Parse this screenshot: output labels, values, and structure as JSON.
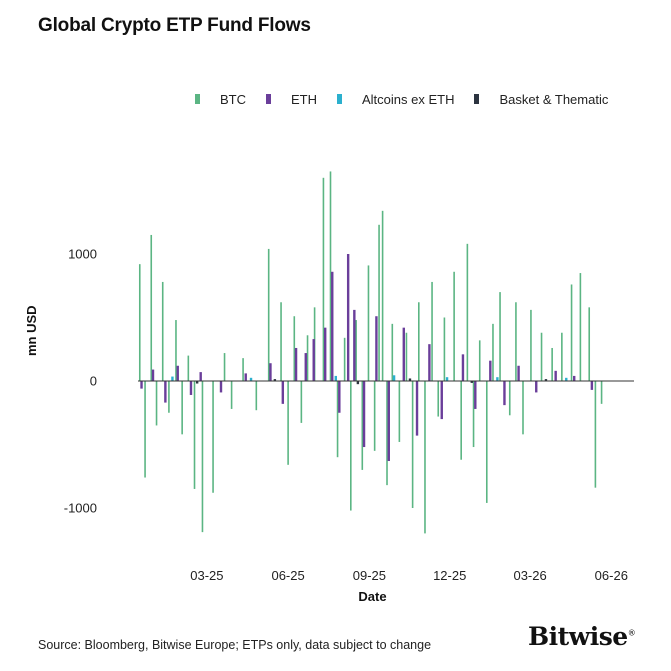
{
  "title": "Global Crypto ETP Fund Flows",
  "source": "Source: Bloomberg, Bitwise Europe; ETPs only, data subject to change",
  "brand": "Bitwise",
  "brand_mark": "®",
  "chart_data": {
    "type": "bar",
    "title": "Global Crypto ETP Fund Flows",
    "xlabel": "Date",
    "ylabel": "mn USD",
    "ylim": [
      -1250,
      1650
    ],
    "yticks": [
      1000,
      0,
      -1000
    ],
    "ytick_labels": [
      "1000",
      "0",
      "-1000"
    ],
    "x_range": [
      "2025-01-06",
      "2026-06-20"
    ],
    "xticks": [
      "2025-03-25",
      "2025-06-25",
      "2025-09-25",
      "2025-12-25",
      "2026-03-26",
      "2026-06-26"
    ],
    "xtick_labels": [
      "03-25",
      "06-25",
      "09-25",
      "12-25",
      "03-26",
      "06-26"
    ],
    "grid": false,
    "legend": "top",
    "series": [
      {
        "name": "BTC",
        "color": "#5BB583",
        "x": [
          "2025-01-08",
          "2025-01-14",
          "2025-01-21",
          "2025-01-27",
          "2025-02-03",
          "2025-02-10",
          "2025-02-18",
          "2025-02-25",
          "2025-03-04",
          "2025-03-11",
          "2025-03-20",
          "2025-04-01",
          "2025-04-14",
          "2025-04-22",
          "2025-05-05",
          "2025-05-20",
          "2025-06-03",
          "2025-06-17",
          "2025-06-25",
          "2025-07-02",
          "2025-07-10",
          "2025-07-17",
          "2025-07-25",
          "2025-08-04",
          "2025-08-12",
          "2025-08-20",
          "2025-08-28",
          "2025-09-04",
          "2025-09-10",
          "2025-09-17",
          "2025-09-24",
          "2025-10-01",
          "2025-10-06",
          "2025-10-10",
          "2025-10-15",
          "2025-10-21",
          "2025-10-29",
          "2025-11-06",
          "2025-11-13",
          "2025-11-20",
          "2025-11-27",
          "2025-12-05",
          "2025-12-12",
          "2025-12-19",
          "2025-12-30",
          "2026-01-07",
          "2026-01-14",
          "2026-01-21",
          "2026-01-28",
          "2026-02-05",
          "2026-02-12",
          "2026-02-20",
          "2026-03-03",
          "2026-03-10",
          "2026-03-18",
          "2026-03-27",
          "2026-04-08",
          "2026-04-20",
          "2026-05-01",
          "2026-05-12",
          "2026-05-22",
          "2026-06-01",
          "2026-06-08",
          "2026-06-15"
        ],
        "values": [
          920,
          -760,
          1150,
          -350,
          780,
          -250,
          480,
          -420,
          200,
          -850,
          -1190,
          -880,
          220,
          -220,
          180,
          -230,
          1040,
          620,
          -660,
          510,
          -330,
          360,
          580,
          1600,
          1650,
          -600,
          340,
          -1020,
          480,
          -700,
          910,
          -550,
          1230,
          1340,
          -820,
          450,
          -480,
          380,
          -1000,
          620,
          -1200,
          780,
          -280,
          500,
          860,
          -620,
          1080,
          -520,
          320,
          -960,
          450,
          700,
          -270,
          620,
          -420,
          560,
          380,
          260,
          380,
          760,
          850,
          580,
          -840,
          -180
        ]
      },
      {
        "name": "ETH",
        "color": "#6A3E9A",
        "x": [
          "2025-01-10",
          "2025-01-23",
          "2025-02-06",
          "2025-02-20",
          "2025-03-07",
          "2025-03-18",
          "2025-04-10",
          "2025-05-08",
          "2025-06-05",
          "2025-06-19",
          "2025-07-04",
          "2025-07-15",
          "2025-07-24",
          "2025-08-06",
          "2025-08-14",
          "2025-08-22",
          "2025-09-01",
          "2025-09-08",
          "2025-09-19",
          "2025-10-03",
          "2025-10-17",
          "2025-11-03",
          "2025-11-18",
          "2025-12-02",
          "2025-12-16",
          "2026-01-09",
          "2026-01-23",
          "2026-02-09",
          "2026-02-25",
          "2026-03-13",
          "2026-04-02",
          "2026-04-24",
          "2026-05-15",
          "2026-06-04"
        ],
        "values": [
          -60,
          90,
          -170,
          120,
          -110,
          70,
          -90,
          60,
          140,
          -180,
          260,
          220,
          330,
          420,
          860,
          -250,
          1000,
          560,
          -520,
          510,
          -630,
          420,
          -430,
          290,
          -300,
          210,
          -220,
          160,
          -190,
          120,
          -90,
          80,
          40,
          -70
        ]
      },
      {
        "name": "Altcoins ex ETH",
        "color": "#2BB0CE",
        "x": [
          "2025-02-14",
          "2025-05-14",
          "2025-08-18",
          "2025-10-23",
          "2025-12-22",
          "2026-02-17",
          "2026-05-06"
        ],
        "values": [
          35,
          25,
          40,
          45,
          30,
          30,
          25
        ]
      },
      {
        "name": "Basket & Thematic",
        "color": "#2C3440",
        "x": [
          "2025-03-14",
          "2025-06-10",
          "2025-09-12",
          "2025-11-10",
          "2026-01-19",
          "2026-04-13"
        ],
        "values": [
          -20,
          15,
          -25,
          20,
          -15,
          15
        ]
      }
    ]
  }
}
